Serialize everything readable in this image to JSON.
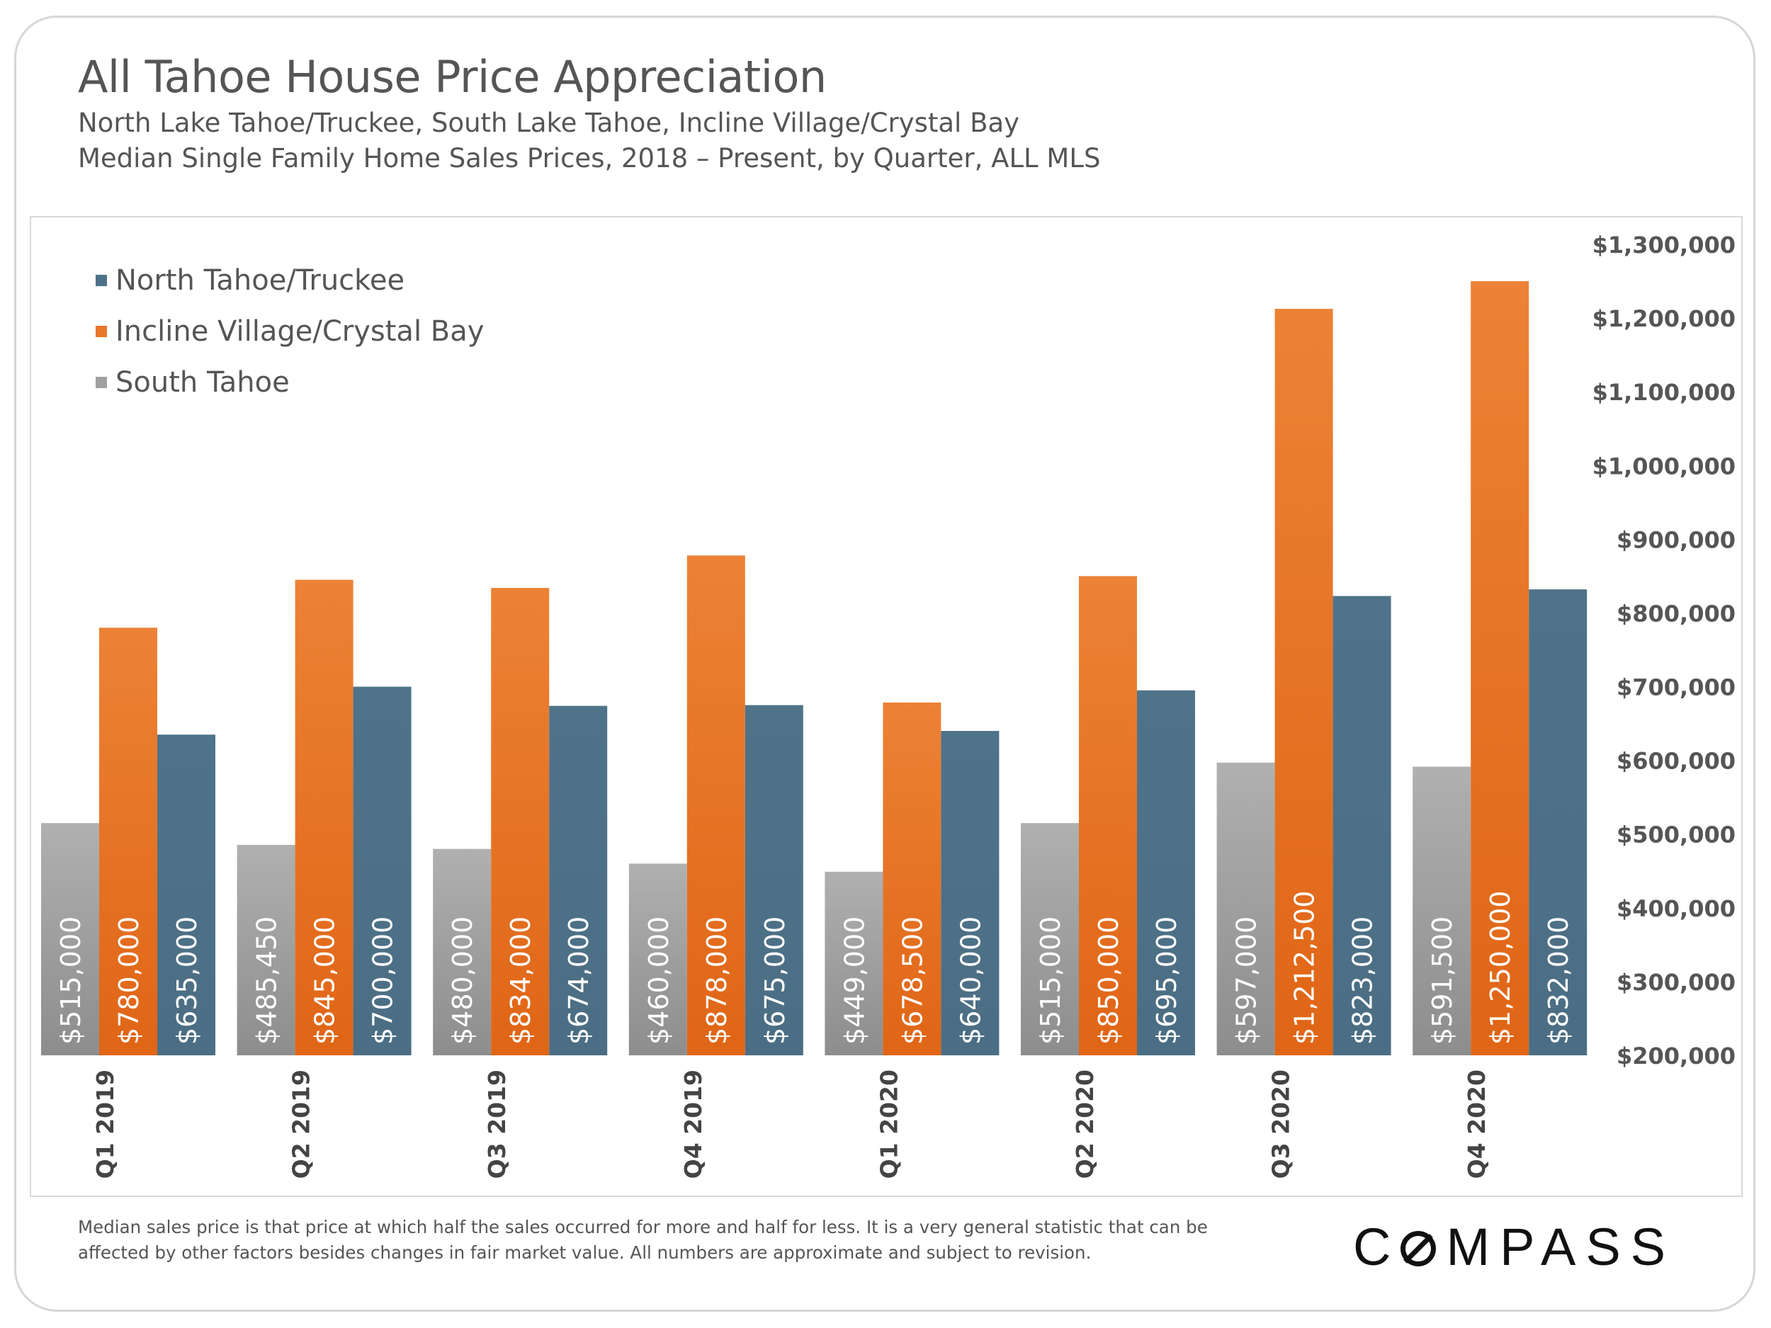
{
  "header": {
    "title": "All Tahoe House Price Appreciation",
    "subtitle_line1": "North Lake Tahoe/Truckee, South Lake Tahoe, Incline Village/Crystal Bay",
    "subtitle_line2": "Median Single Family Home Sales Prices, 2018 – Present, by Quarter, ALL MLS"
  },
  "legend": {
    "items": [
      {
        "label": "North Tahoe/Truckee",
        "color": "#4d7188"
      },
      {
        "label": "Incline Village/Crystal Bay",
        "color": "#e8762b"
      },
      {
        "label": "South Tahoe",
        "color": "#a0a0a0"
      }
    ]
  },
  "footnote": {
    "text": "Median sales price is that price at which half the sales occurred for more and half for less. It is a very general statistic that can be affected by other factors besides changes in fair market value. All numbers are approximate and subject to revision."
  },
  "logo": {
    "text_before": "C",
    "text_after": "MPASS"
  },
  "chart_data": {
    "type": "bar",
    "categories": [
      "Q1 2019",
      "Q2 2019",
      "Q3 2019",
      "Q4 2019",
      "Q1 2020",
      "Q2 2020",
      "Q3 2020",
      "Q4 2020"
    ],
    "series": [
      {
        "name": "South Tahoe",
        "color": "#a0a0a0",
        "values": [
          515000,
          485450,
          480000,
          460000,
          449000,
          515000,
          597000,
          591500
        ],
        "labels": [
          "$515,000",
          "$485,450",
          "$480,000",
          "$460,000",
          "$449,000",
          "$515,000",
          "$597,000",
          "$591,500"
        ]
      },
      {
        "name": "Incline Village/Crystal Bay",
        "color": "#e8762b",
        "values": [
          780000,
          845000,
          834000,
          878000,
          678500,
          850000,
          1212500,
          1250000
        ],
        "labels": [
          "$780,000",
          "$845,000",
          "$834,000",
          "$878,000",
          "$678,500",
          "$850,000",
          "$1,212,500",
          "$1,250,000"
        ]
      },
      {
        "name": "North Tahoe/Truckee",
        "color": "#4d7188",
        "values": [
          635000,
          700000,
          674000,
          675000,
          640000,
          695000,
          823000,
          832000
        ],
        "labels": [
          "$635,000",
          "$700,000",
          "$674,000",
          "$675,000",
          "$640,000",
          "$695,000",
          "$823,000",
          "$832,000"
        ]
      }
    ],
    "y_axis": {
      "position": "right",
      "ylim": [
        200000,
        1300000
      ],
      "ticks": [
        200000,
        300000,
        400000,
        500000,
        600000,
        700000,
        800000,
        900000,
        1000000,
        1100000,
        1200000,
        1300000
      ],
      "tick_labels": [
        "$200,000",
        "$300,000",
        "$400,000",
        "$500,000",
        "$600,000",
        "$700,000",
        "$800,000",
        "$900,000",
        "$1,000,000",
        "$1,100,000",
        "$1,200,000",
        "$1,300,000"
      ]
    },
    "grid": false,
    "legend_position": "top-left"
  }
}
